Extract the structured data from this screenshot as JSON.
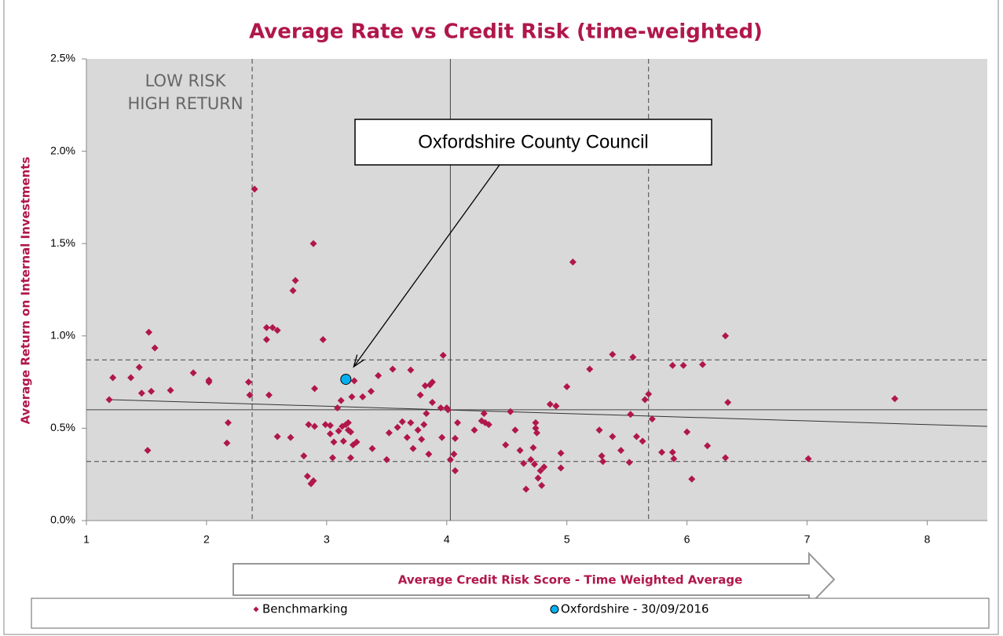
{
  "chart_data": {
    "type": "scatter",
    "title": "Average Rate vs Credit Risk (time-weighted)",
    "x_label": "Average Credit Risk Score - Time Weighted Average",
    "y_label": "Average Return on Internal Investments",
    "xlim": [
      1,
      8.5
    ],
    "xticks": [
      1,
      2,
      3,
      4,
      5,
      6,
      7,
      8
    ],
    "ylim": [
      0,
      2.5
    ],
    "yticks": [
      {
        "value": 0,
        "label": "0.0%"
      },
      {
        "value": 0.5,
        "label": "0.5%"
      },
      {
        "value": 1,
        "label": "1.0%"
      },
      {
        "value": 1.5,
        "label": "1.5%"
      },
      {
        "value": 2,
        "label": "2.0%"
      },
      {
        "value": 2.5,
        "label": "2.5%"
      }
    ],
    "plot_background": "#d9d9d9",
    "vlines": [
      {
        "value": 2.38,
        "style": "dashed"
      },
      {
        "value": 4.03,
        "style": "solid"
      },
      {
        "value": 5.68,
        "style": "dashed"
      }
    ],
    "hlines": [
      {
        "value": 0.32,
        "style": "dashed"
      },
      {
        "value": 0.6,
        "style": "solid"
      },
      {
        "value": 0.87,
        "style": "dashed"
      }
    ],
    "trendline": {
      "x": [
        1.2,
        8.5
      ],
      "values": [
        0.655,
        0.51
      ]
    },
    "annotations": {
      "low_risk": [
        "LOW RISK",
        "HIGH RETURN"
      ],
      "callout": "Oxfordshire County Council"
    },
    "series": [
      {
        "name": "Benchmarking",
        "color": "#b0174a",
        "marker": "diamond",
        "x": [
          1.19,
          1.22,
          1.37,
          1.44,
          1.46,
          1.52,
          1.54,
          1.51,
          1.57,
          1.7,
          1.89,
          2.02,
          2.02,
          2.18,
          2.17,
          2.35,
          2.36,
          2.4,
          2.5,
          2.5,
          2.55,
          2.52,
          2.59,
          2.59,
          2.7,
          2.72,
          2.74,
          2.81,
          2.84,
          2.85,
          2.89,
          2.87,
          2.89,
          2.9,
          2.9,
          2.97,
          2.99,
          3.03,
          3.03,
          3.05,
          3.06,
          3.09,
          3.1,
          3.12,
          3.13,
          3.14,
          3.16,
          3.18,
          3.18,
          3.2,
          3.2,
          3.21,
          3.22,
          3.23,
          3.25,
          3.3,
          3.37,
          3.38,
          3.43,
          3.5,
          3.52,
          3.55,
          3.59,
          3.63,
          3.67,
          3.7,
          3.7,
          3.72,
          3.76,
          3.78,
          3.79,
          3.81,
          3.82,
          3.83,
          3.85,
          3.86,
          3.88,
          3.88,
          3.95,
          3.96,
          3.97,
          4.0,
          4.01,
          4.03,
          4.06,
          4.07,
          4.07,
          4.09,
          4.23,
          4.29,
          4.31,
          4.32,
          4.35,
          4.49,
          4.53,
          4.57,
          4.61,
          4.64,
          4.66,
          4.7,
          4.72,
          4.73,
          4.74,
          4.74,
          4.75,
          4.76,
          4.78,
          4.79,
          4.81,
          4.86,
          4.91,
          4.95,
          4.95,
          5.0,
          5.05,
          5.19,
          5.27,
          5.29,
          5.3,
          5.38,
          5.38,
          5.45,
          5.52,
          5.53,
          5.55,
          5.58,
          5.63,
          5.65,
          5.68,
          5.71,
          5.79,
          5.88,
          5.88,
          5.89,
          5.97,
          6.0,
          6.04,
          6.13,
          6.17,
          6.32,
          6.32,
          6.34,
          7.01,
          7.73
        ],
        "values": [
          0.655,
          0.774,
          0.774,
          0.83,
          0.69,
          1.02,
          0.7,
          0.38,
          0.935,
          0.705,
          0.8,
          0.75,
          0.76,
          0.53,
          0.42,
          0.75,
          0.68,
          1.795,
          0.98,
          1.045,
          1.045,
          0.68,
          1.03,
          0.455,
          0.45,
          1.245,
          1.3,
          0.35,
          0.24,
          0.52,
          0.215,
          0.2,
          1.5,
          0.715,
          0.51,
          0.98,
          0.52,
          0.515,
          0.47,
          0.34,
          0.425,
          0.61,
          0.485,
          0.65,
          0.51,
          0.43,
          0.52,
          0.53,
          0.49,
          0.48,
          0.34,
          0.67,
          0.41,
          0.757,
          0.425,
          0.67,
          0.7,
          0.39,
          0.785,
          0.33,
          0.475,
          0.82,
          0.505,
          0.535,
          0.45,
          0.53,
          0.815,
          0.39,
          0.49,
          0.68,
          0.44,
          0.52,
          0.73,
          0.58,
          0.36,
          0.735,
          0.75,
          0.64,
          0.61,
          0.45,
          0.895,
          0.61,
          0.6,
          0.33,
          0.36,
          0.445,
          0.27,
          0.53,
          0.49,
          0.54,
          0.58,
          0.53,
          0.52,
          0.41,
          0.59,
          0.49,
          0.38,
          0.31,
          0.17,
          0.33,
          0.395,
          0.305,
          0.53,
          0.5,
          0.475,
          0.23,
          0.27,
          0.19,
          0.29,
          0.63,
          0.62,
          0.365,
          0.285,
          0.725,
          1.4,
          0.82,
          0.49,
          0.35,
          0.32,
          0.9,
          0.455,
          0.38,
          0.315,
          0.575,
          0.885,
          0.455,
          0.43,
          0.655,
          0.685,
          0.55,
          0.37,
          0.84,
          0.37,
          0.335,
          0.84,
          0.48,
          0.225,
          0.845,
          0.405,
          1.0,
          0.34,
          0.64,
          0.335,
          0.66
        ]
      },
      {
        "name": "Oxfordshire - 30/09/2016",
        "color": "#00b0f0",
        "marker": "circle",
        "x": [
          3.16
        ],
        "values": [
          0.765
        ]
      }
    ]
  }
}
